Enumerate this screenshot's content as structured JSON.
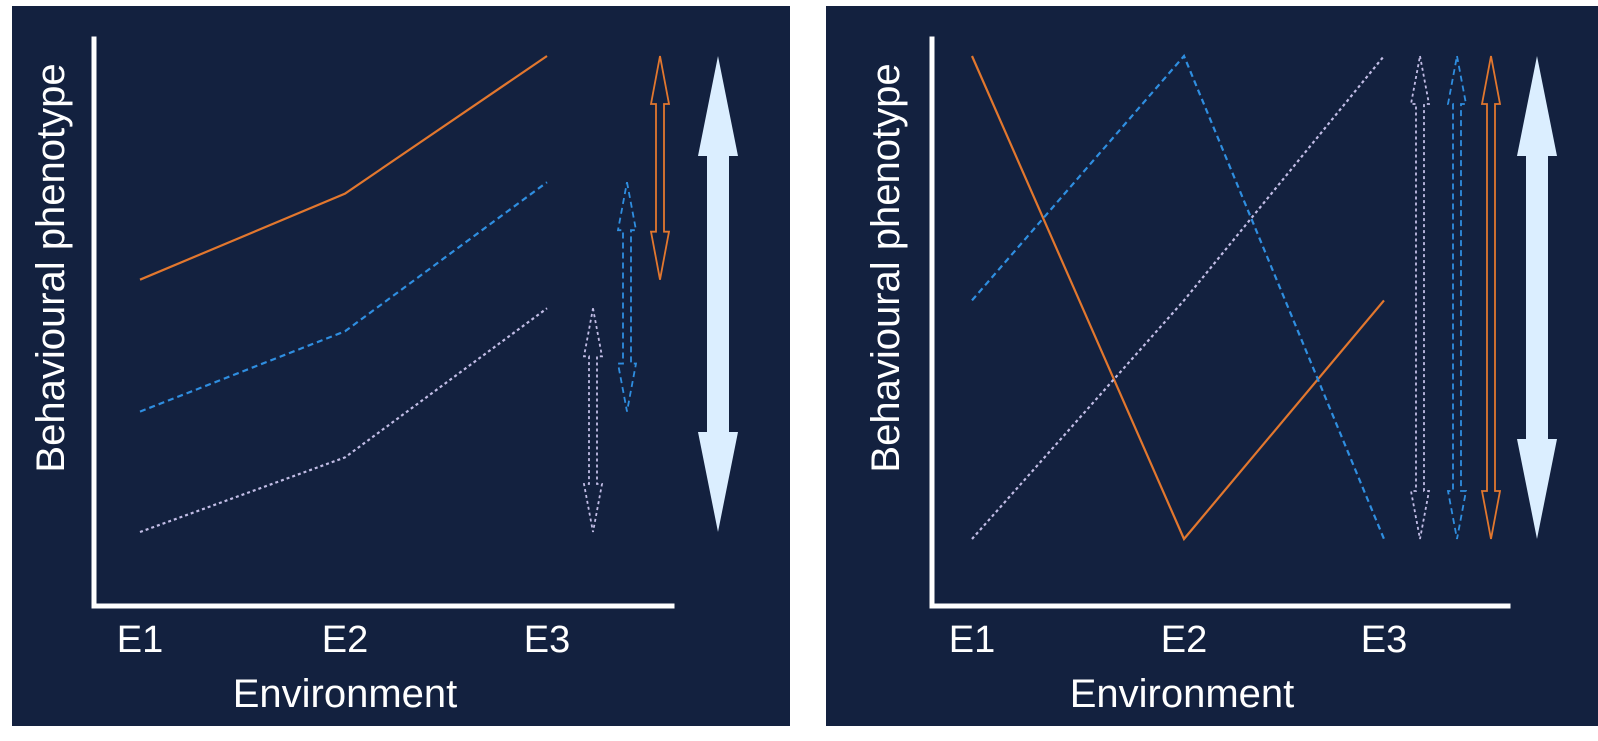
{
  "colors": {
    "background": "#13213f",
    "axis": "#ffffff",
    "orange": "#e2772e",
    "blue": "#2f8ee0",
    "lavender": "#c2bde6",
    "total_arrow": "#dbeeff"
  },
  "chart_data": [
    {
      "type": "line",
      "xlabel": "Environment",
      "ylabel": "Behavioural phenotype",
      "categories": [
        "E1",
        "E2",
        "E3"
      ],
      "ylim": [
        0,
        100
      ],
      "grid": false,
      "series": [
        {
          "style": "solid",
          "color": "#e2772e",
          "values": [
            56,
            71,
            95
          ]
        },
        {
          "style": "dashed",
          "color": "#2f8ee0",
          "values": [
            33,
            47,
            73
          ]
        },
        {
          "style": "dotted",
          "color": "#c2bde6",
          "values": [
            12,
            25,
            51
          ]
        }
      ],
      "range_arrows": [
        {
          "style": "solid",
          "color": "#e2772e",
          "range": [
            56,
            95
          ],
          "icon": "double-arrow"
        },
        {
          "style": "dashed",
          "color": "#2f8ee0",
          "range": [
            33,
            73
          ],
          "icon": "double-arrow"
        },
        {
          "style": "dotted",
          "color": "#c2bde6",
          "range": [
            12,
            51
          ],
          "icon": "double-arrow"
        },
        {
          "style": "filled",
          "color": "#dbeeff",
          "range": [
            12,
            95
          ],
          "icon": "double-arrow"
        }
      ]
    },
    {
      "type": "line",
      "xlabel": "Environment",
      "ylabel": "Behavioural phenotype",
      "categories": [
        "E1",
        "E2",
        "E3"
      ],
      "ylim": [
        0,
        100
      ],
      "grid": false,
      "series": [
        {
          "style": "solid",
          "color": "#e2772e",
          "values": [
            95,
            12,
            53
          ]
        },
        {
          "style": "dashed",
          "color": "#2f8ee0",
          "values": [
            53,
            95,
            12
          ]
        },
        {
          "style": "dotted",
          "color": "#c2bde6",
          "values": [
            12,
            53,
            95
          ]
        }
      ],
      "range_arrows": [
        {
          "style": "dotted",
          "color": "#c2bde6",
          "range": [
            12,
            95
          ],
          "icon": "double-arrow"
        },
        {
          "style": "dashed",
          "color": "#2f8ee0",
          "range": [
            12,
            95
          ],
          "icon": "double-arrow"
        },
        {
          "style": "solid",
          "color": "#e2772e",
          "range": [
            12,
            95
          ],
          "icon": "double-arrow"
        },
        {
          "style": "filled",
          "color": "#dbeeff",
          "range": [
            12,
            95
          ],
          "icon": "double-arrow"
        }
      ]
    }
  ]
}
